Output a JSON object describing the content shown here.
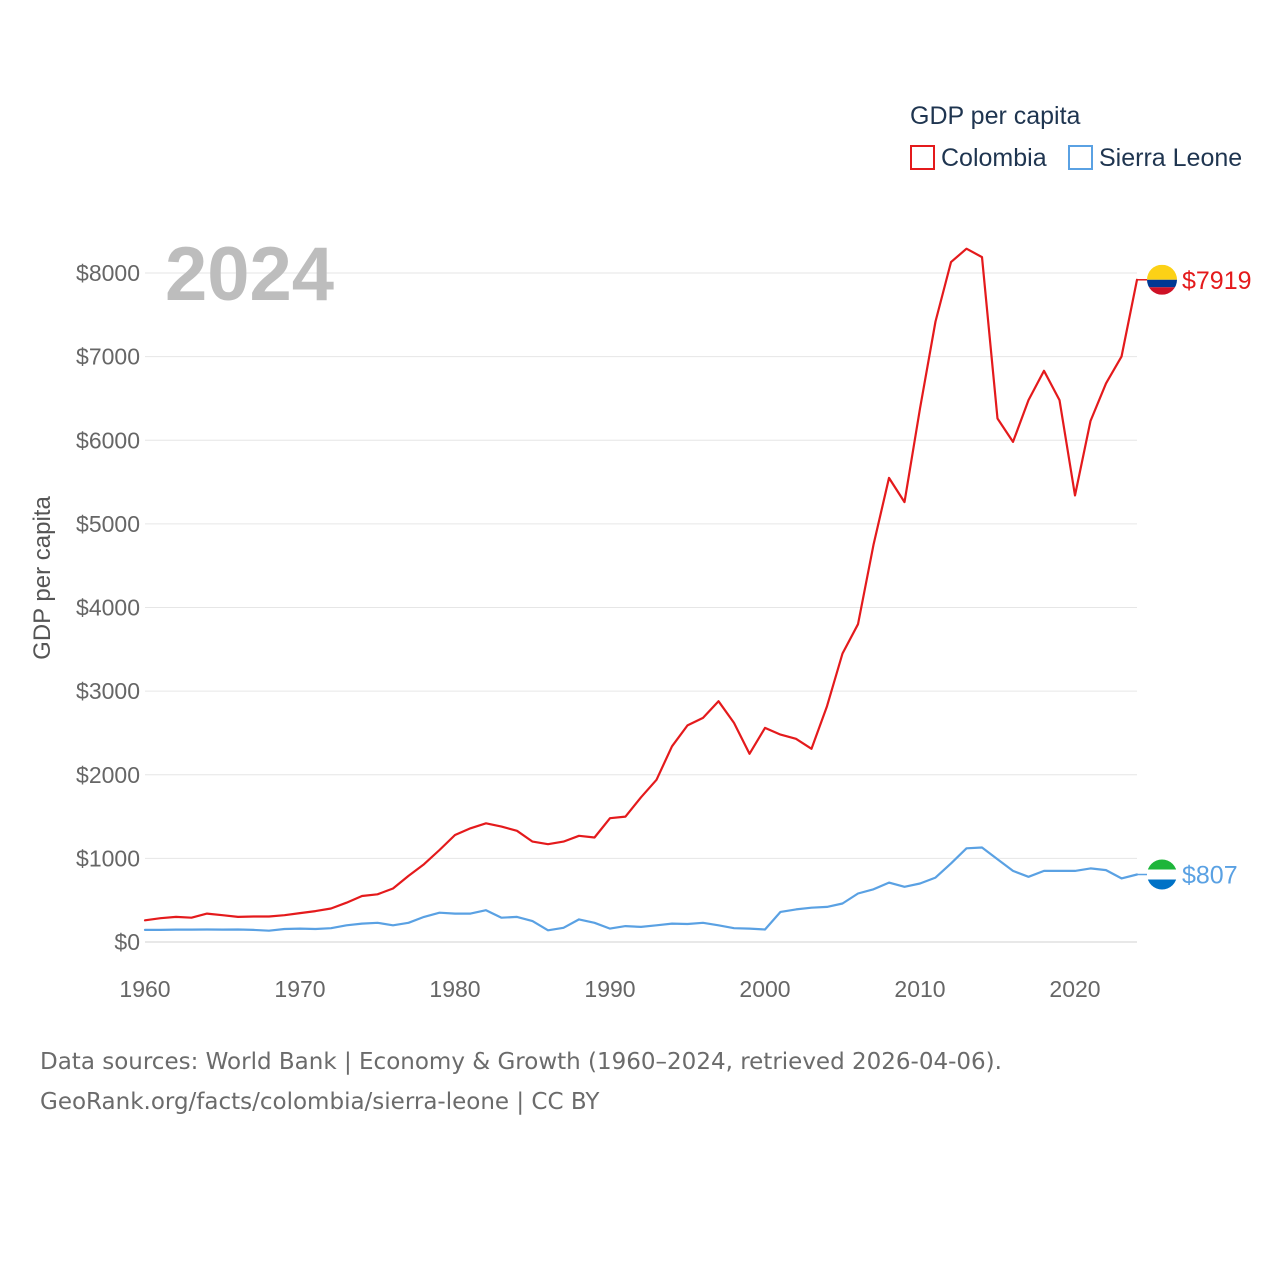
{
  "chart_data": {
    "type": "line",
    "year_label": "2024",
    "ylabel": "GDP per capita",
    "legend": {
      "title": "GDP per capita",
      "placement": "top-right"
    },
    "x_ticks": [
      1960,
      1970,
      1980,
      1990,
      2000,
      2010,
      2020
    ],
    "x_range": [
      1960,
      2024
    ],
    "y_ticks": [
      0,
      1000,
      2000,
      3000,
      4000,
      5000,
      6000,
      7000,
      8000
    ],
    "y_tick_labels": [
      "$0",
      "$1000",
      "$2000",
      "$3000",
      "$4000",
      "$5000",
      "$6000",
      "$7000",
      "$8000"
    ],
    "ylim": [
      0,
      8000
    ],
    "years": [
      1960,
      1961,
      1962,
      1963,
      1964,
      1965,
      1966,
      1967,
      1968,
      1969,
      1970,
      1971,
      1972,
      1973,
      1974,
      1975,
      1976,
      1977,
      1978,
      1979,
      1980,
      1981,
      1982,
      1983,
      1984,
      1985,
      1986,
      1987,
      1988,
      1989,
      1990,
      1991,
      1992,
      1993,
      1994,
      1995,
      1996,
      1997,
      1998,
      1999,
      2000,
      2001,
      2002,
      2003,
      2004,
      2005,
      2006,
      2007,
      2008,
      2009,
      2010,
      2011,
      2012,
      2013,
      2014,
      2015,
      2016,
      2017,
      2018,
      2019,
      2020,
      2021,
      2022,
      2023,
      2024
    ],
    "series": [
      {
        "name": "Colombia",
        "color": "#e41a1c",
        "end_label": "$7919",
        "values": [
          260,
          285,
          300,
          290,
          340,
          320,
          300,
          305,
          305,
          320,
          345,
          370,
          400,
          470,
          550,
          570,
          640,
          790,
          930,
          1100,
          1280,
          1360,
          1420,
          1380,
          1330,
          1200,
          1170,
          1200,
          1270,
          1250,
          1480,
          1500,
          1730,
          1940,
          2340,
          2590,
          2680,
          2880,
          2620,
          2250,
          2560,
          2480,
          2430,
          2310,
          2820,
          3450,
          3800,
          4750,
          5550,
          5260,
          6380,
          7420,
          8130,
          8290,
          8190,
          6260,
          5980,
          6480,
          6830,
          6480,
          5340,
          6230,
          6680,
          7000,
          7919
        ],
        "flag": [
          "#FCD116",
          "#003893",
          "#CE1126"
        ]
      },
      {
        "name": "Sierra Leone",
        "color": "#5aa1e3",
        "end_label": "$807",
        "values": [
          145,
          145,
          148,
          148,
          150,
          148,
          150,
          145,
          135,
          155,
          160,
          155,
          165,
          200,
          220,
          230,
          200,
          230,
          300,
          350,
          340,
          340,
          380,
          290,
          300,
          250,
          140,
          170,
          270,
          230,
          160,
          190,
          180,
          200,
          220,
          215,
          230,
          200,
          165,
          160,
          150,
          360,
          390,
          410,
          420,
          460,
          580,
          630,
          710,
          660,
          700,
          770,
          940,
          1120,
          1130,
          990,
          850,
          780,
          850,
          850,
          850,
          880,
          860,
          760,
          807
        ],
        "flag": [
          "#1EB53A",
          "#FFFFFF",
          "#0072C6"
        ]
      }
    ]
  },
  "footer": {
    "line1": "Data sources: World Bank | Economy & Growth (1960–2024, retrieved 2026-04-06).",
    "line2": "GeoRank.org/facts/colombia/sierra-leone | CC BY"
  }
}
